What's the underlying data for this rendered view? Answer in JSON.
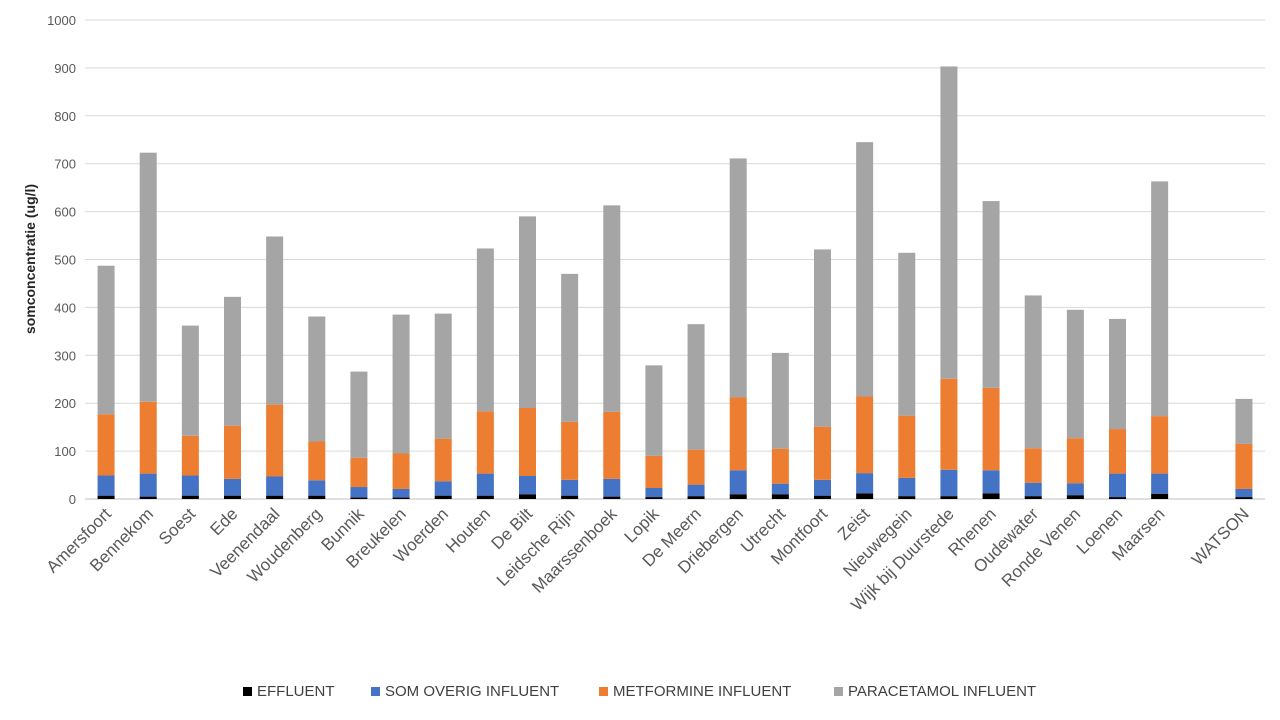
{
  "chart_data": {
    "type": "bar",
    "stacked": true,
    "ylabel": "somconcentratie (ug/l)",
    "xlabel": "",
    "ylim": [
      0,
      1000
    ],
    "yticks": [
      0,
      100,
      200,
      300,
      400,
      500,
      600,
      700,
      800,
      900,
      1000
    ],
    "grid": true,
    "legend_position": "bottom",
    "categories": [
      "Amersfoort",
      "Bennekom",
      "Soest",
      "Ede",
      "Veenendaal",
      "Woudenberg",
      "Bunnik",
      "Breukelen",
      "Woerden",
      "Houten",
      "De Bilt",
      "Leidsche Rijn",
      "Maarssenboek",
      "Lopik",
      "De Meern",
      "Driebergen",
      "Utrecht",
      "Montfoort",
      "Zeist",
      "Nieuwegein",
      "Wijk bij Duurstede",
      "Rhenen",
      "Oudewater",
      "Ronde Venen",
      "Loenen",
      "Maarsen",
      "",
      "WATSON"
    ],
    "series": [
      {
        "name": "EFFLUENT",
        "color": "#000000",
        "values": [
          7,
          5,
          7,
          7,
          7,
          7,
          3,
          3,
          7,
          7,
          10,
          7,
          5,
          4,
          6,
          10,
          10,
          7,
          12,
          6,
          6,
          12,
          6,
          8,
          4,
          11,
          null,
          4
        ]
      },
      {
        "name": "SOM OVERIG INFLUENT",
        "color": "#4472c4",
        "values": [
          42,
          48,
          42,
          35,
          40,
          32,
          22,
          18,
          30,
          46,
          38,
          33,
          37,
          19,
          24,
          50,
          22,
          33,
          42,
          38,
          55,
          48,
          28,
          25,
          49,
          42,
          null,
          17
        ]
      },
      {
        "name": "METFORMINE INFLUENT",
        "color": "#ed7d31",
        "values": [
          128,
          150,
          83,
          111,
          150,
          81,
          61,
          74,
          89,
          130,
          142,
          121,
          140,
          67,
          73,
          152,
          73,
          111,
          160,
          130,
          190,
          172,
          72,
          94,
          93,
          120,
          null,
          94
        ]
      },
      {
        "name": "PARACETAMOL INFLUENT",
        "color": "#a5a5a5",
        "values": [
          310,
          520,
          230,
          269,
          351,
          261,
          180,
          290,
          261,
          340,
          400,
          309,
          431,
          189,
          262,
          499,
          200,
          370,
          531,
          340,
          652,
          390,
          319,
          268,
          230,
          490,
          null,
          94
        ]
      }
    ]
  }
}
